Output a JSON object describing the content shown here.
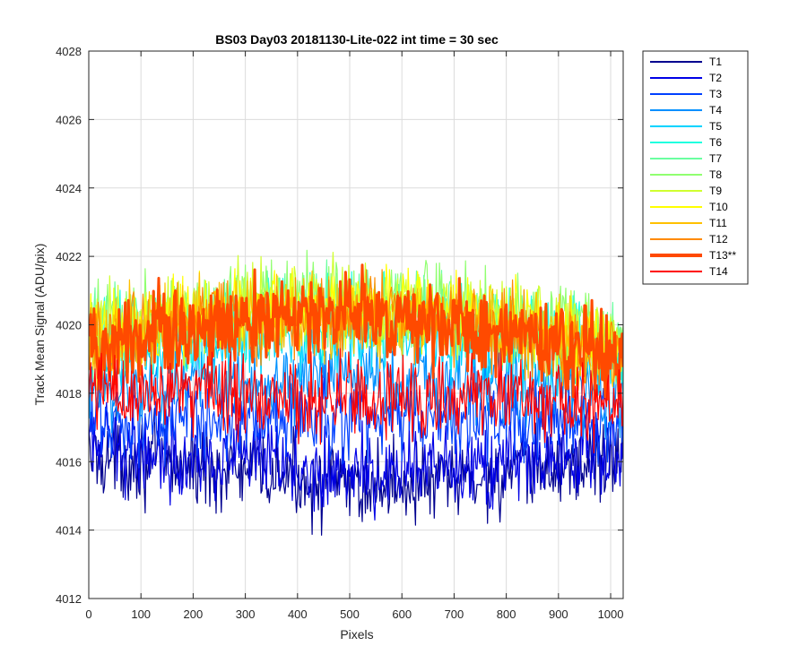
{
  "chart_data": {
    "type": "line",
    "title": "BS03 Day03 20181130-Lite-022 int time = 30 sec",
    "xlabel": "Pixels",
    "ylabel": "Track Mean Signal (ADU/pix)",
    "xlim": [
      0,
      1024
    ],
    "ylim": [
      4012,
      4028
    ],
    "xticks": [
      0,
      100,
      200,
      300,
      400,
      500,
      600,
      700,
      800,
      900,
      1000
    ],
    "yticks": [
      4012,
      4014,
      4016,
      4018,
      4020,
      4022,
      4024,
      4026,
      4028
    ],
    "grid": true,
    "legend_position": "outside-right-top",
    "noise_peak_to_peak": 3.5,
    "series": [
      {
        "name": "T1",
        "color": "#00008f",
        "bold": false,
        "mean_profile": [
          [
            0,
            4016.2
          ],
          [
            150,
            4016.0
          ],
          [
            300,
            4015.7
          ],
          [
            500,
            4015.3
          ],
          [
            700,
            4015.4
          ],
          [
            850,
            4015.7
          ],
          [
            1024,
            4016.2
          ]
        ]
      },
      {
        "name": "T2",
        "color": "#0000e6",
        "bold": false,
        "mean_profile": [
          [
            0,
            4016.5
          ],
          [
            150,
            4016.3
          ],
          [
            300,
            4016.0
          ],
          [
            500,
            4015.7
          ],
          [
            700,
            4015.7
          ],
          [
            850,
            4016.0
          ],
          [
            1024,
            4016.4
          ]
        ]
      },
      {
        "name": "T3",
        "color": "#0040ff",
        "bold": false,
        "mean_profile": [
          [
            0,
            4017.2
          ],
          [
            150,
            4017.2
          ],
          [
            300,
            4017.3
          ],
          [
            500,
            4017.2
          ],
          [
            700,
            4017.3
          ],
          [
            850,
            4017.2
          ],
          [
            1024,
            4017.0
          ]
        ]
      },
      {
        "name": "T4",
        "color": "#0090ff",
        "bold": false,
        "mean_profile": [
          [
            0,
            4018.0
          ],
          [
            150,
            4018.2
          ],
          [
            300,
            4018.4
          ],
          [
            500,
            4018.5
          ],
          [
            700,
            4018.4
          ],
          [
            850,
            4018.2
          ],
          [
            1024,
            4017.8
          ]
        ]
      },
      {
        "name": "T5",
        "color": "#00d4ff",
        "bold": false,
        "mean_profile": [
          [
            0,
            4019.0
          ],
          [
            150,
            4019.3
          ],
          [
            300,
            4019.6
          ],
          [
            500,
            4019.8
          ],
          [
            700,
            4019.6
          ],
          [
            850,
            4019.2
          ],
          [
            1024,
            4018.7
          ]
        ]
      },
      {
        "name": "T6",
        "color": "#20ffdf",
        "bold": false,
        "mean_profile": [
          [
            0,
            4019.4
          ],
          [
            150,
            4019.8
          ],
          [
            300,
            4020.1
          ],
          [
            500,
            4020.3
          ],
          [
            700,
            4020.1
          ],
          [
            850,
            4019.7
          ],
          [
            1024,
            4019.1
          ]
        ]
      },
      {
        "name": "T7",
        "color": "#6affa0",
        "bold": false,
        "mean_profile": [
          [
            0,
            4019.6
          ],
          [
            150,
            4020.0
          ],
          [
            300,
            4020.3
          ],
          [
            500,
            4020.5
          ],
          [
            700,
            4020.3
          ],
          [
            850,
            4019.9
          ],
          [
            1024,
            4019.3
          ]
        ]
      },
      {
        "name": "T8",
        "color": "#90ff70",
        "bold": false,
        "mean_profile": [
          [
            0,
            4019.8
          ],
          [
            150,
            4020.3
          ],
          [
            300,
            4020.6
          ],
          [
            500,
            4020.7
          ],
          [
            700,
            4020.5
          ],
          [
            850,
            4020.1
          ],
          [
            1024,
            4019.5
          ]
        ]
      },
      {
        "name": "T9",
        "color": "#d0ff30",
        "bold": false,
        "mean_profile": [
          [
            0,
            4019.7
          ],
          [
            150,
            4020.2
          ],
          [
            300,
            4020.5
          ],
          [
            500,
            4020.6
          ],
          [
            700,
            4020.4
          ],
          [
            850,
            4020.0
          ],
          [
            1024,
            4019.4
          ]
        ]
      },
      {
        "name": "T10",
        "color": "#ffff00",
        "bold": false,
        "mean_profile": [
          [
            0,
            4019.6
          ],
          [
            150,
            4020.1
          ],
          [
            300,
            4020.4
          ],
          [
            500,
            4020.5
          ],
          [
            700,
            4020.3
          ],
          [
            850,
            4019.9
          ],
          [
            1024,
            4019.3
          ]
        ]
      },
      {
        "name": "T11",
        "color": "#ffc000",
        "bold": false,
        "mean_profile": [
          [
            0,
            4019.5
          ],
          [
            150,
            4020.0
          ],
          [
            300,
            4020.3
          ],
          [
            500,
            4020.4
          ],
          [
            700,
            4020.2
          ],
          [
            850,
            4019.8
          ],
          [
            1024,
            4019.2
          ]
        ]
      },
      {
        "name": "T12",
        "color": "#ff8a00",
        "bold": false,
        "mean_profile": [
          [
            0,
            4019.4
          ],
          [
            150,
            4019.9
          ],
          [
            300,
            4020.2
          ],
          [
            500,
            4020.3
          ],
          [
            700,
            4020.1
          ],
          [
            850,
            4019.7
          ],
          [
            1024,
            4019.1
          ]
        ]
      },
      {
        "name": "T13**",
        "color": "#ff4a00",
        "bold": true,
        "mean_profile": [
          [
            0,
            4019.3
          ],
          [
            150,
            4019.8
          ],
          [
            300,
            4020.1
          ],
          [
            500,
            4020.2
          ],
          [
            700,
            4020.0
          ],
          [
            850,
            4019.6
          ],
          [
            1024,
            4019.0
          ]
        ]
      },
      {
        "name": "T14",
        "color": "#ff0000",
        "bold": false,
        "mean_profile": [
          [
            0,
            4018.0
          ],
          [
            150,
            4018.1
          ],
          [
            300,
            4018.0
          ],
          [
            500,
            4017.9
          ],
          [
            700,
            4017.9
          ],
          [
            850,
            4017.8
          ],
          [
            1024,
            4017.6
          ]
        ]
      }
    ]
  }
}
